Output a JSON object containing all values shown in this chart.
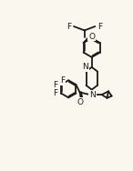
{
  "background_color": "#faf8ee",
  "line_color": "#1a1a1a",
  "line_width": 1.3,
  "font_size": 6.5,
  "fig_width": 1.46,
  "fig_height": 1.88,
  "dpi": 100,
  "xlim": [
    0.0,
    1.0
  ],
  "ylim": [
    0.0,
    1.0
  ]
}
